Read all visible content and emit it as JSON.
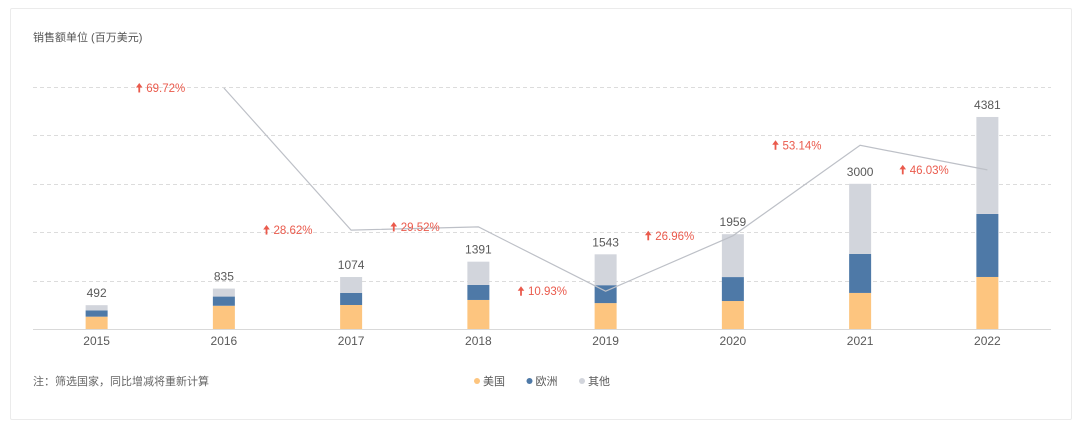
{
  "footnote": "注：筛选国家，同比增减将重新计算",
  "chart_data": {
    "type": "bar",
    "stacked": true,
    "ylabel": "销售额单位 (百万美元)",
    "categories": [
      "2015",
      "2016",
      "2017",
      "2018",
      "2019",
      "2020",
      "2021",
      "2022"
    ],
    "series": [
      {
        "name": "美国",
        "color": "#FDC57F",
        "values": [
          255,
          480,
          496,
          600,
          535,
          578,
          745,
          1075
        ]
      },
      {
        "name": "欧洲",
        "color": "#4E79A7",
        "values": [
          130,
          190,
          248,
          310,
          370,
          495,
          805,
          1302
        ]
      },
      {
        "name": "其他",
        "color": "#D2D5DC",
        "values": [
          107,
          165,
          330,
          481,
          638,
          886,
          1450,
          2004
        ]
      }
    ],
    "totals": [
      492,
      835,
      1074,
      1391,
      1543,
      1959,
      3000,
      4381
    ],
    "ylim": [
      0,
      5000
    ],
    "yticks": [
      0,
      1000,
      2000,
      3000,
      4000,
      5000
    ],
    "ytick_labels_shown": false,
    "grid": true,
    "legend": "bottom",
    "yoy_growth": {
      "type": "line",
      "color": "#BDC0C7",
      "label_color": "#EA5A4C",
      "trend_icon": "up-arrow-icon",
      "values": [
        null,
        69.72,
        28.62,
        29.52,
        10.93,
        26.96,
        53.14,
        46.03
      ],
      "labels": [
        null,
        "69.72%",
        "28.62%",
        "29.52%",
        "10.93%",
        "26.96%",
        "53.14%",
        "46.03%"
      ],
      "ylim": [
        0,
        70
      ]
    }
  }
}
